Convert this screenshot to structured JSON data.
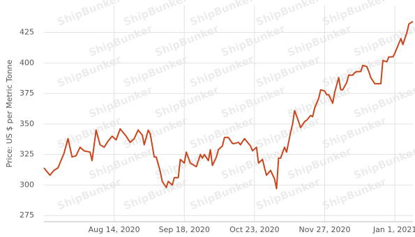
{
  "chart_data": {
    "type": "line",
    "y_label": "Price: US $ per Metric Tonne",
    "watermark": "ShipBunker",
    "x": [
      "2020-07-10",
      "2020-07-13",
      "2020-07-15",
      "2020-07-17",
      "2020-07-20",
      "2020-07-22",
      "2020-07-24",
      "2020-07-26",
      "2020-07-28",
      "2020-07-30",
      "2020-08-02",
      "2020-08-03",
      "2020-08-05",
      "2020-08-07",
      "2020-08-09",
      "2020-08-11",
      "2020-08-13",
      "2020-08-15",
      "2020-08-17",
      "2020-08-20",
      "2020-08-22",
      "2020-08-24",
      "2020-08-26",
      "2020-08-28",
      "2020-08-29",
      "2020-08-31",
      "2020-09-01",
      "2020-09-03",
      "2020-09-04",
      "2020-09-06",
      "2020-09-07",
      "2020-09-09",
      "2020-09-10",
      "2020-09-12",
      "2020-09-13",
      "2020-09-15",
      "2020-09-16",
      "2020-09-18",
      "2020-09-19",
      "2020-09-21",
      "2020-09-22",
      "2020-09-24",
      "2020-09-26",
      "2020-09-27",
      "2020-09-28",
      "2020-09-30",
      "2020-10-01",
      "2020-10-02",
      "2020-10-04",
      "2020-10-05",
      "2020-10-07",
      "2020-10-08",
      "2020-10-10",
      "2020-10-12",
      "2020-10-13",
      "2020-10-15",
      "2020-10-16",
      "2020-10-18",
      "2020-10-19",
      "2020-10-21",
      "2020-10-22",
      "2020-10-24",
      "2020-10-25",
      "2020-10-27",
      "2020-10-28",
      "2020-10-29",
      "2020-10-31",
      "2020-11-02",
      "2020-11-03",
      "2020-11-04",
      "2020-11-05",
      "2020-11-07",
      "2020-11-08",
      "2020-11-10",
      "2020-11-11",
      "2020-11-12",
      "2020-11-14",
      "2020-11-15",
      "2020-11-17",
      "2020-11-18",
      "2020-11-20",
      "2020-11-21",
      "2020-11-22",
      "2020-11-24",
      "2020-11-25",
      "2020-11-27",
      "2020-11-28",
      "2020-11-29",
      "2020-12-01",
      "2020-12-02",
      "2020-12-04",
      "2020-12-05",
      "2020-12-06",
      "2020-12-08",
      "2020-12-09",
      "2020-12-11",
      "2020-12-12",
      "2020-12-13",
      "2020-12-15",
      "2020-12-16",
      "2020-12-18",
      "2020-12-19",
      "2020-12-20",
      "2020-12-22",
      "2020-12-24",
      "2020-12-25",
      "2020-12-26",
      "2020-12-28",
      "2020-12-29",
      "2020-12-31",
      "2021-01-01",
      "2021-01-02",
      "2021-01-04",
      "2021-01-05",
      "2021-01-07",
      "2021-01-08",
      "2021-01-10"
    ],
    "series": [
      {
        "color": "#c8461c",
        "values": [
          314,
          308,
          312,
          314,
          326,
          338,
          323,
          324,
          331,
          328,
          327,
          320,
          345,
          333,
          331,
          336,
          340,
          337,
          346,
          340,
          335,
          338,
          345,
          341,
          333,
          345,
          342,
          323,
          323,
          311,
          303,
          298,
          303,
          300,
          306,
          306,
          321,
          318,
          327,
          318,
          317,
          315,
          325,
          322,
          325,
          320,
          329,
          316,
          323,
          329,
          332,
          339,
          339,
          334,
          334,
          335,
          333,
          338,
          336,
          332,
          328,
          331,
          318,
          321,
          314,
          308,
          312,
          305,
          297,
          322,
          322,
          331,
          327,
          343,
          350,
          361,
          352,
          347,
          352,
          353,
          357,
          356,
          363,
          371,
          378,
          377,
          374,
          374,
          367,
          376,
          388,
          378,
          378,
          384,
          390,
          390,
          392,
          393,
          393,
          398,
          397,
          393,
          388,
          383,
          383,
          383,
          402,
          401,
          405,
          405,
          408,
          412,
          420,
          415,
          425,
          432,
          434
        ]
      }
    ],
    "xlim": [
      "2020-07-10",
      "2021-01-10"
    ],
    "xticks": [
      {
        "value": "2020-08-14",
        "label": "Aug 14, 2020"
      },
      {
        "value": "2020-09-18",
        "label": "Sep 18, 2020"
      },
      {
        "value": "2020-10-23",
        "label": "Oct 23, 2020"
      },
      {
        "value": "2020-11-27",
        "label": "Nov 27, 2020"
      },
      {
        "value": "2021-01-01",
        "label": "Jan 1, 2021"
      }
    ],
    "ylim": [
      270,
      447
    ],
    "yticks": [
      275,
      300,
      325,
      350,
      375,
      400,
      425
    ],
    "grid": true
  }
}
